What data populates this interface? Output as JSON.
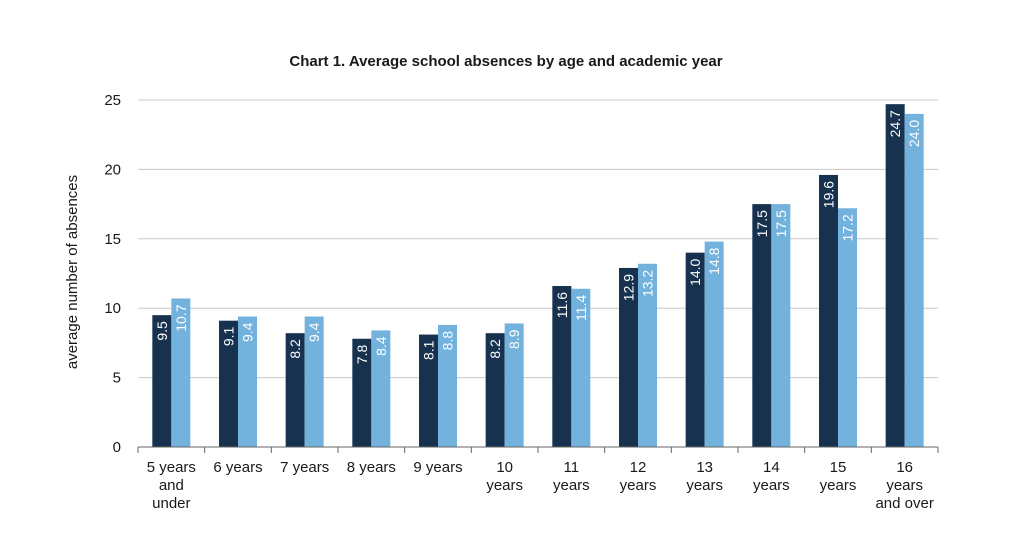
{
  "chart_data": {
    "type": "bar",
    "title": "Chart 1. Average school absences by age and academic year",
    "xlabel": "",
    "ylabel": "average number of absences",
    "ylim": [
      0,
      25
    ],
    "yticks": [
      0,
      5,
      10,
      15,
      20,
      25
    ],
    "grid": true,
    "categories": [
      [
        "5 years",
        "and",
        "under"
      ],
      [
        "6 years"
      ],
      [
        "7 years"
      ],
      [
        "8 years"
      ],
      [
        "9 years"
      ],
      [
        "10",
        "years"
      ],
      [
        "11",
        "years"
      ],
      [
        "12",
        "years"
      ],
      [
        "13",
        "years"
      ],
      [
        "14",
        "years"
      ],
      [
        "15",
        "years"
      ],
      [
        "16",
        "years",
        "and over"
      ]
    ],
    "series": [
      {
        "color": "#17324f",
        "values": [
          9.5,
          9.1,
          8.2,
          7.8,
          8.1,
          8.2,
          11.6,
          12.9,
          14.0,
          17.5,
          19.6,
          24.7
        ],
        "labels": [
          "9.5",
          "9.1",
          "8.2",
          "7.8",
          "8.1",
          "8.2",
          "11.6",
          "12.9",
          "14.0",
          "17.5",
          "19.6",
          "24.7"
        ]
      },
      {
        "color": "#72b2dc",
        "values": [
          10.7,
          9.4,
          9.4,
          8.4,
          8.8,
          8.9,
          11.4,
          13.2,
          14.8,
          17.5,
          17.2,
          24.0
        ],
        "labels": [
          "10.7",
          "9.4",
          "9.4",
          "8.4",
          "8.8",
          "8.9",
          "11.4",
          "13.2",
          "14.8",
          "17.5",
          "17.2",
          "24.0"
        ]
      }
    ]
  }
}
